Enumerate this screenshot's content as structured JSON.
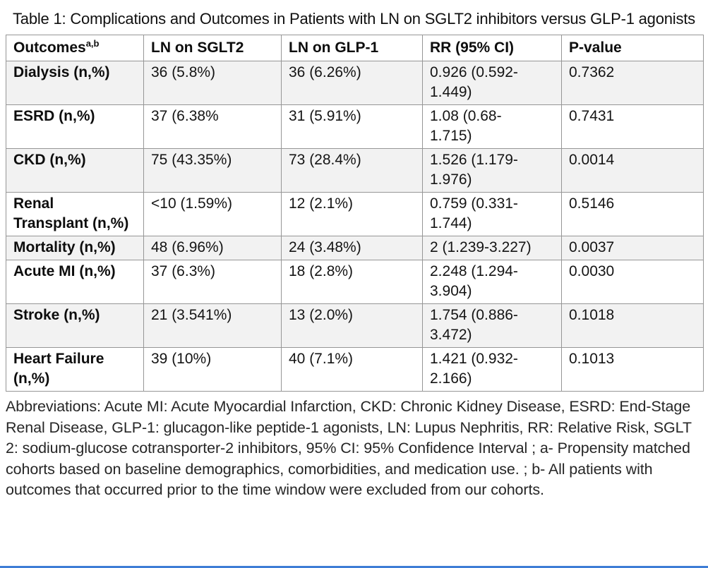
{
  "title": "Table 1: Complications and Outcomes in Patients with LN on SGLT2 inhibitors versus GLP-1 agonists",
  "table": {
    "columns": [
      "Outcomes",
      "LN on SGLT2",
      "LN on GLP-1",
      "RR (95% CI)",
      "P-value"
    ],
    "header_superscript": "a,b",
    "rows": [
      {
        "outcome": "Dialysis (n,%)",
        "ln_on_sglt2": "36 (5.8%)",
        "ln_on_glp1": "36 (6.26%)",
        "rr_95_ci": "0.926 (0.592-1.449)",
        "p_value": "0.7362",
        "shaded": true
      },
      {
        "outcome": "ESRD (n,%)",
        "ln_on_sglt2": "37 (6.38%",
        "ln_on_glp1": "31 (5.91%)",
        "rr_95_ci": "1.08 (0.68-1.715)",
        "p_value": "0.7431",
        "shaded": false
      },
      {
        "outcome": "CKD (n,%)",
        "ln_on_sglt2": "75 (43.35%)",
        "ln_on_glp1": "73 (28.4%)",
        "rr_95_ci": "1.526 (1.179-1.976)",
        "p_value": "0.0014",
        "shaded": true
      },
      {
        "outcome": "Renal Transplant (n,%)",
        "ln_on_sglt2": "<10 (1.59%)",
        "ln_on_glp1": "12 (2.1%)",
        "rr_95_ci": "0.759 (0.331-1.744)",
        "p_value": "0.5146",
        "shaded": false
      },
      {
        "outcome": "Mortality (n,%)",
        "ln_on_sglt2": "48 (6.96%)",
        "ln_on_glp1": "24 (3.48%)",
        "rr_95_ci": "2 (1.239-3.227)",
        "p_value": "0.0037",
        "shaded": true
      },
      {
        "outcome": "Acute MI (n,%)",
        "ln_on_sglt2": "37 (6.3%)",
        "ln_on_glp1": "18 (2.8%)",
        "rr_95_ci": "2.248 (1.294-3.904)",
        "p_value": "0.0030",
        "shaded": false
      },
      {
        "outcome": "Stroke (n,%)",
        "ln_on_sglt2": "21 (3.541%)",
        "ln_on_glp1": "13 (2.0%)",
        "rr_95_ci": "1.754 (0.886-3.472)",
        "p_value": "0.1018",
        "shaded": true
      },
      {
        "outcome": "Heart Failure (n,%)",
        "ln_on_sglt2": "39 (10%)",
        "ln_on_glp1": "40 (7.1%)",
        "rr_95_ci": "1.421 (0.932-2.166)",
        "p_value": "0.1013",
        "shaded": false
      }
    ]
  },
  "footnote": "Abbreviations: Acute MI: Acute Myocardial Infarction, CKD: Chronic Kidney Disease, ESRD: End-Stage Renal Disease, GLP-1: glucagon-like peptide-1 agonists, LN: Lupus Nephritis, RR: Relative Risk, SGLT 2: sodium-glucose cotransporter-2 inhibitors, 95% CI: 95% Confidence Interval ; a- Propensity matched cohorts based on baseline demographics, comorbidities, and medication use. ; b- All patients with outcomes that occurred prior to the time window were excluded from our cohorts.",
  "colors": {
    "row_shading": "#f2f2f2",
    "table_border": "#969696",
    "text": "#141414",
    "bottom_rule": "#3e7dd6"
  }
}
